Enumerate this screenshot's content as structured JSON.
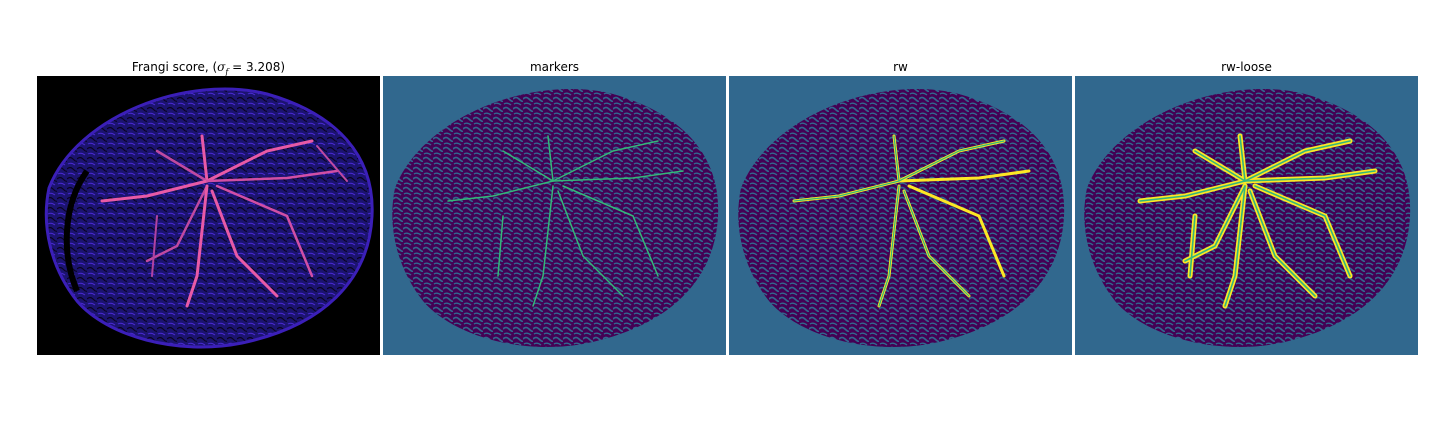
{
  "figure": {
    "panels": [
      {
        "id": "frangi",
        "title_prefix": "Frangi score, (",
        "title_sigma": "σ",
        "title_sub": "f",
        "title_suffix": " = 3.208)",
        "colormap": "magma"
      },
      {
        "id": "markers",
        "title": "markers",
        "colormap": "viridis"
      },
      {
        "id": "rw",
        "title": "rw",
        "colormap": "viridis"
      },
      {
        "id": "rw-loose",
        "title": "rw-loose",
        "colormap": "viridis"
      }
    ]
  },
  "colors": {
    "black": "#000000",
    "magma_low": "#1c1470",
    "magma_mid": "#3b1fb8",
    "magma_high": "#e85aa6",
    "viridis_bg": "#31688e",
    "viridis_dark": "#440154",
    "viridis_mid": "#35b779",
    "viridis_yellow": "#fde725"
  }
}
